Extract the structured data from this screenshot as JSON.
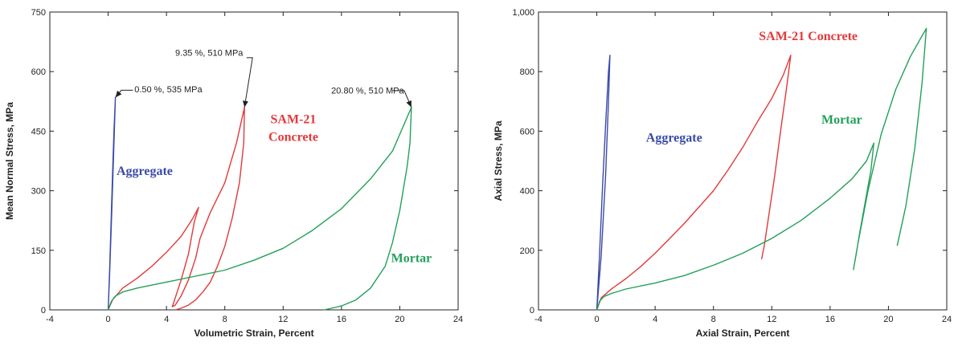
{
  "colors": {
    "aggregate": "#3b4aa8",
    "concrete": "#e2393a",
    "mortar": "#22a05a",
    "axis": "#222222"
  },
  "chart_data": [
    {
      "type": "line",
      "xlabel": "Volumetric Strain, Percent",
      "ylabel": "Mean Normal Stress, MPa",
      "xlim": [
        -4,
        24
      ],
      "ylim": [
        0,
        750
      ],
      "xticks": [
        "-4",
        "0",
        "4",
        "8",
        "12",
        "16",
        "20",
        "24"
      ],
      "yticks": [
        "0",
        "150",
        "300",
        "450",
        "600",
        "750"
      ],
      "series_labels": [
        {
          "key": "aggregate",
          "lines": [
            "Aggregate"
          ],
          "color": "#3b4aa8"
        },
        {
          "key": "concrete",
          "lines": [
            "SAM-21",
            "Concrete"
          ],
          "color": "#e2393a"
        },
        {
          "key": "mortar",
          "lines": [
            "Mortar"
          ],
          "color": "#22a05a"
        }
      ],
      "annotations": [
        {
          "text": "0.50 %,  535 MPa",
          "point": [
            0.5,
            535
          ]
        },
        {
          "text": "9.35 %,  510 MPa",
          "point": [
            9.35,
            510
          ]
        },
        {
          "text": "20.80 %, 510 MPa",
          "point": [
            20.8,
            510
          ]
        }
      ],
      "series": [
        {
          "key": "aggregate",
          "x": [
            0,
            0.1,
            0.2,
            0.3,
            0.4,
            0.5,
            0.4,
            0.25,
            0.1,
            0
          ],
          "y": [
            0,
            100,
            220,
            340,
            450,
            535,
            420,
            250,
            90,
            0
          ]
        },
        {
          "key": "concrete",
          "x": [
            0,
            0.3,
            1,
            2,
            3,
            4,
            5,
            5.8,
            6.2,
            5.9,
            5.5,
            5,
            4.6,
            4.4,
            4.6,
            5,
            5.5,
            6,
            6.3,
            7,
            8,
            8.8,
            9.35,
            9.3,
            9,
            8.5,
            8,
            7.5,
            7,
            6.5,
            6,
            5.5,
            5,
            4.6
          ],
          "y": [
            0,
            25,
            55,
            80,
            110,
            145,
            185,
            230,
            258,
            220,
            140,
            75,
            30,
            8,
            12,
            35,
            75,
            130,
            180,
            245,
            320,
            420,
            510,
            420,
            320,
            230,
            160,
            110,
            70,
            45,
            25,
            12,
            4,
            0
          ]
        },
        {
          "key": "mortar",
          "x": [
            0,
            0.2,
            0.5,
            1,
            2,
            4,
            6,
            8,
            10,
            12,
            14,
            16,
            18,
            19.5,
            20.8,
            20.7,
            20.5,
            20,
            19.5,
            19,
            18,
            17,
            16,
            15.2,
            14.8
          ],
          "y": [
            0,
            20,
            35,
            45,
            55,
            70,
            85,
            100,
            125,
            155,
            200,
            255,
            330,
            400,
            510,
            420,
            360,
            250,
            170,
            110,
            55,
            25,
            10,
            3,
            0
          ]
        }
      ]
    },
    {
      "type": "line",
      "xlabel": "Axial Strain, Percent",
      "ylabel": "Axial Stress, MPa",
      "xlim": [
        -4,
        24
      ],
      "ylim": [
        0,
        1000
      ],
      "xticks": [
        "-4",
        "0",
        "4",
        "8",
        "12",
        "16",
        "20",
        "24"
      ],
      "yticks": [
        "0",
        "200",
        "400",
        "600",
        "800",
        "1,000"
      ],
      "series_labels": [
        {
          "key": "aggregate",
          "lines": [
            "Aggregate"
          ],
          "color": "#3b4aa8"
        },
        {
          "key": "concrete",
          "lines": [
            "SAM-21 Concrete"
          ],
          "color": "#e2393a"
        },
        {
          "key": "mortar",
          "lines": [
            "Mortar"
          ],
          "color": "#22a05a"
        }
      ],
      "annotations": [],
      "series": [
        {
          "key": "aggregate",
          "x": [
            0,
            0.2,
            0.4,
            0.6,
            0.8,
            0.9,
            0.8,
            0.6,
            0.3,
            0
          ],
          "y": [
            0,
            200,
            420,
            620,
            800,
            855,
            700,
            450,
            180,
            0
          ]
        },
        {
          "key": "concrete",
          "x": [
            0,
            0.3,
            1,
            2,
            3,
            4,
            5,
            6,
            7,
            8,
            9,
            10,
            11,
            12,
            12.8,
            13.3,
            13,
            12.6,
            12.2,
            11.8,
            11.5,
            11.3
          ],
          "y": [
            0,
            40,
            70,
            105,
            145,
            190,
            240,
            290,
            345,
            400,
            470,
            545,
            630,
            710,
            790,
            855,
            740,
            600,
            450,
            320,
            220,
            170
          ]
        },
        {
          "key": "mortar",
          "x": [
            0,
            0.2,
            0.5,
            1,
            2,
            4,
            6,
            8,
            10,
            12,
            14,
            16,
            17.5,
            18.5,
            19,
            18.8,
            18.4,
            18,
            17.8,
            17.6,
            17.9,
            18.6,
            19.5,
            20.5,
            21.5,
            22.3,
            22.6,
            22.3,
            21.8,
            21.2,
            20.6
          ],
          "y": [
            0,
            30,
            45,
            55,
            70,
            90,
            115,
            150,
            190,
            240,
            300,
            375,
            440,
            500,
            560,
            470,
            360,
            250,
            190,
            135,
            220,
            400,
            590,
            740,
            850,
            920,
            945,
            760,
            540,
            350,
            215
          ]
        }
      ]
    }
  ]
}
